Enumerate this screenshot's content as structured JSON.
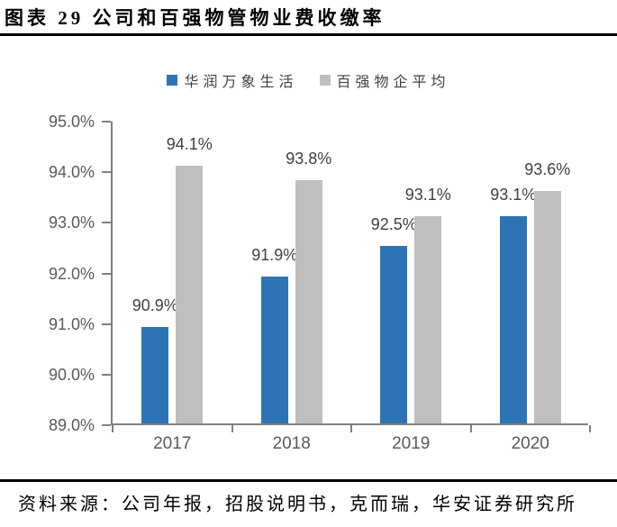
{
  "header": {
    "title": "图表 29 公司和百强物管物业费收缴率"
  },
  "chart_data": {
    "type": "bar",
    "title": "公司和百强物管物业费收缴率",
    "categories": [
      "2017",
      "2018",
      "2019",
      "2020"
    ],
    "series": [
      {
        "name": "华润万象生活",
        "color": "#2E74B5",
        "values": [
          90.9,
          91.9,
          92.5,
          93.1
        ],
        "labels": [
          "90.9%",
          "91.9%",
          "92.5%",
          "93.1%"
        ]
      },
      {
        "name": "百强物企平均",
        "color": "#BFBFBF",
        "values": [
          94.1,
          93.8,
          93.1,
          93.6
        ],
        "labels": [
          "94.1%",
          "93.8%",
          "93.1%",
          "93.6%"
        ]
      }
    ],
    "ylim": [
      89.0,
      95.0
    ],
    "ytick_step": 1.0,
    "yticks": [
      "95.0%",
      "94.0%",
      "93.0%",
      "92.0%",
      "91.0%",
      "90.0%",
      "89.0%"
    ],
    "xlabel": "",
    "ylabel": "",
    "legend_position": "top",
    "grid": false
  },
  "colors": {
    "axis": "#808080",
    "tick_label": "#595959",
    "data_label": "#404040",
    "rule": "#000000",
    "series_blue": "#2E74B5",
    "series_gray": "#BFBFBF"
  },
  "footer": {
    "source": "资料来源：公司年报，招股说明书，克而瑞，华安证券研究所"
  }
}
